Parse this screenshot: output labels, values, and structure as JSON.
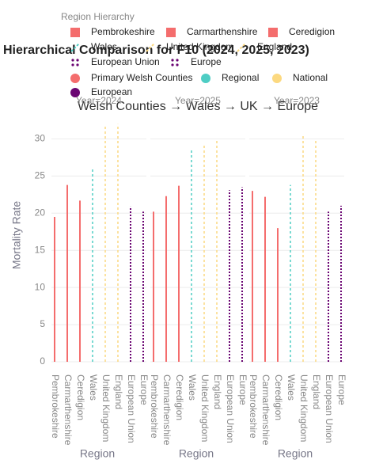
{
  "chart_data": {
    "type": "bar",
    "title": "Hierarchical Comparison for F10 (2024, 2025, 2023)",
    "subtitle": "Welsh Counties → Wales → UK → Europe",
    "y_label": "Mortality Rate",
    "x_label": "Region",
    "categories": [
      "Pembrokeshire",
      "Carmarthenshire",
      "Ceredigion",
      "Wales",
      "United Kingdom",
      "England",
      "European Union",
      "Europe"
    ],
    "category_colors": [
      "#f46d6d",
      "#f46d6d",
      "#f46d6d",
      "#4ecdc4",
      "#fcd980",
      "#fcd980",
      "#6a0572",
      "#6a0572"
    ],
    "category_dash": [
      "solid",
      "solid",
      "solid",
      "dash",
      "dash",
      "dash",
      "dot",
      "dot"
    ],
    "ylim": [
      0,
      32.5
    ],
    "yticks": [
      0,
      5,
      10,
      15,
      20,
      25,
      30
    ],
    "grid": true,
    "facets": [
      {
        "label": "Year=2024",
        "values": [
          19.5,
          23.8,
          21.7,
          26.2,
          31.7,
          32,
          20.9,
          20.2
        ]
      },
      {
        "label": "Year=2025",
        "values": [
          20.2,
          22.3,
          23.7,
          28.6,
          29.4,
          30,
          23.1,
          23.5
        ]
      },
      {
        "label": "Year=2023",
        "values": [
          23,
          22.2,
          18,
          23.8,
          30.6,
          30,
          20.2,
          21
        ]
      }
    ],
    "legend": {
      "title": "Region Hierarchy",
      "position": "top",
      "items": [
        {
          "name": "Pembrokeshire",
          "color": "#f46d6d",
          "shape": "square"
        },
        {
          "name": "Carmarthenshire",
          "color": "#f46d6d",
          "shape": "square"
        },
        {
          "name": "Ceredigion",
          "color": "#f46d6d",
          "shape": "square"
        },
        {
          "name": "Wales",
          "color": "#4ecdc4",
          "shape": "dash"
        },
        {
          "name": "United Kingdom",
          "color": "#fcd980",
          "shape": "dash"
        },
        {
          "name": "England",
          "color": "#fcd980",
          "shape": "dash"
        },
        {
          "name": "European Union",
          "color": "#6a0572",
          "shape": "dots"
        },
        {
          "name": "Europe",
          "color": "#6a0572",
          "shape": "dots"
        },
        {
          "name": "Primary Welsh Counties",
          "color": "#f46d6d",
          "shape": "circle"
        },
        {
          "name": "Regional",
          "color": "#4ecdc4",
          "shape": "circle"
        },
        {
          "name": "National",
          "color": "#fcd980",
          "shape": "circle"
        },
        {
          "name": "European",
          "color": "#6a0572",
          "shape": "circle"
        }
      ]
    }
  }
}
